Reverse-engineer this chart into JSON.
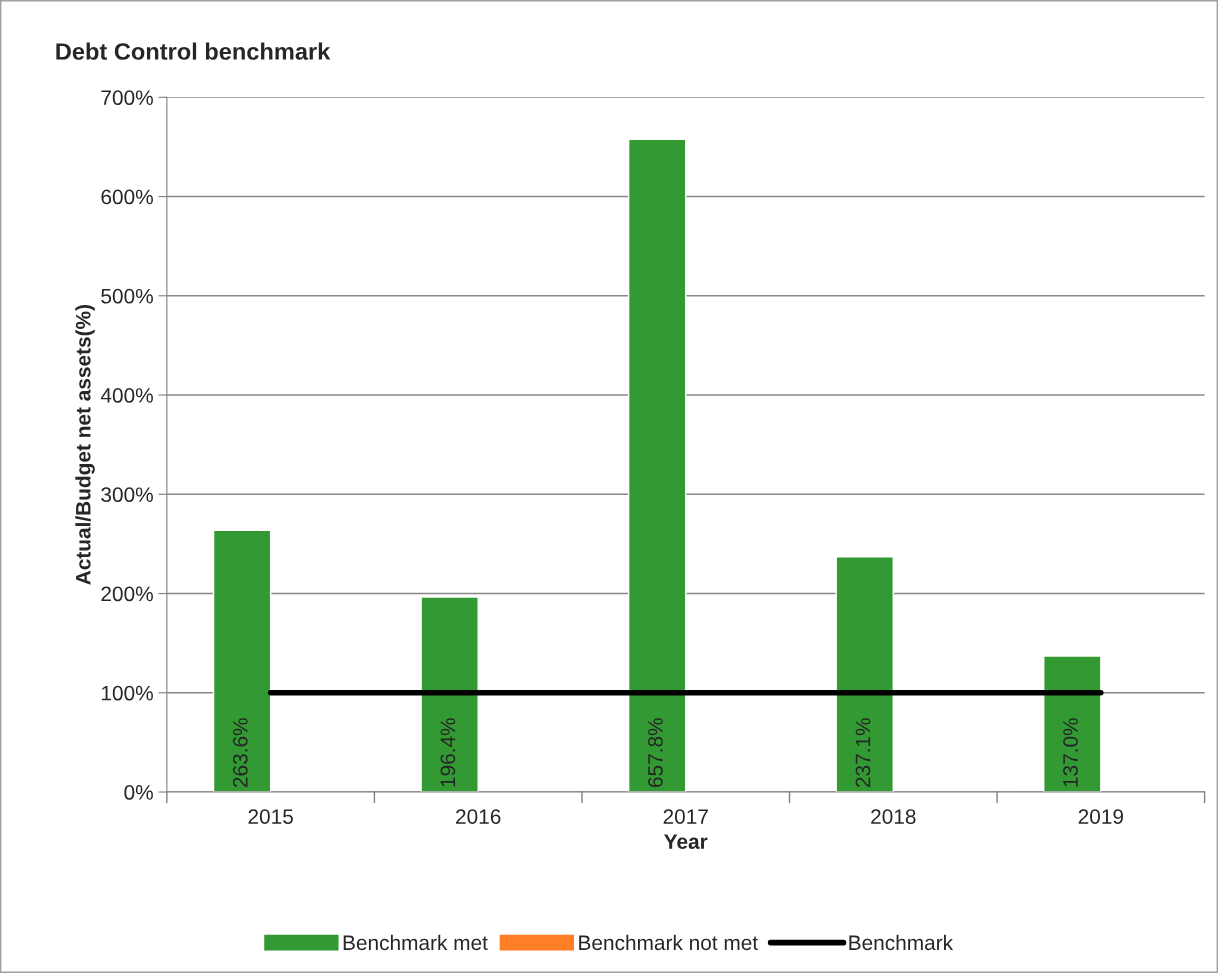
{
  "chart_data": {
    "type": "bar",
    "title": "Debt Control benchmark",
    "xlabel": "Year",
    "ylabel": "Actual/Budget net assets(%)",
    "categories": [
      "2015",
      "2016",
      "2017",
      "2018",
      "2019"
    ],
    "series": [
      {
        "name": "Benchmark met",
        "color": "#339933",
        "values": [
          263.6,
          196.4,
          657.8,
          237.1,
          137.0
        ],
        "value_labels": [
          "263.6%",
          "196.4%",
          "657.8%",
          "237.1%",
          "137.0%"
        ]
      },
      {
        "name": "Benchmark not met",
        "color": "#ff7f27",
        "values": [
          null,
          null,
          null,
          null,
          null
        ]
      },
      {
        "name": "Benchmark",
        "type": "line",
        "color": "#000000",
        "values": [
          100,
          100,
          100,
          100,
          100
        ]
      }
    ],
    "ylim": [
      0,
      700
    ],
    "yticks": [
      {
        "value": 0,
        "label": "0%"
      },
      {
        "value": 100,
        "label": "100%"
      },
      {
        "value": 200,
        "label": "200%"
      },
      {
        "value": 300,
        "label": "300%"
      },
      {
        "value": 400,
        "label": "400%"
      },
      {
        "value": 500,
        "label": "500%"
      },
      {
        "value": 600,
        "label": "600%"
      },
      {
        "value": 700,
        "label": "700%"
      }
    ],
    "grid": "y",
    "legend": "bottom",
    "marker": "none",
    "line_style": "solid"
  }
}
